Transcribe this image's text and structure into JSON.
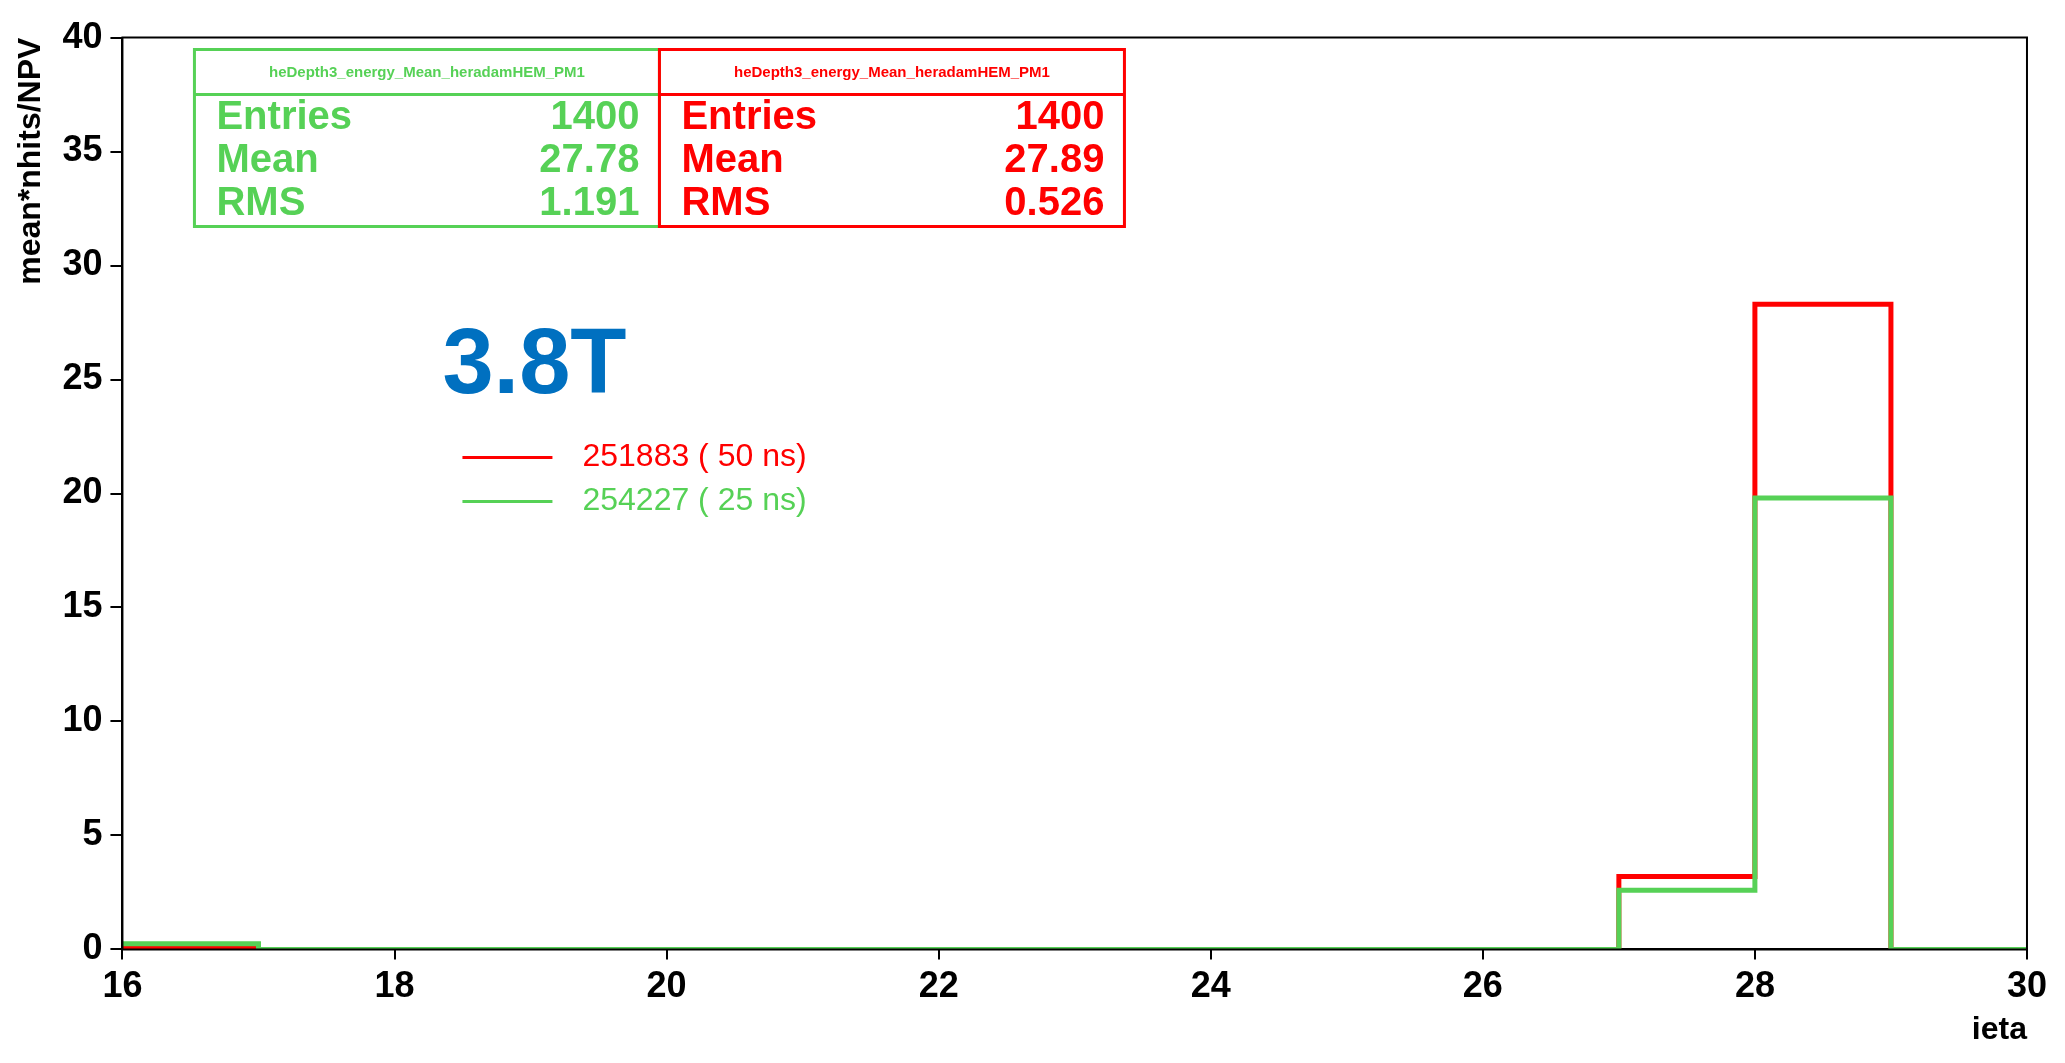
{
  "chart_data": {
    "type": "histogram",
    "xlabel": "ieta",
    "ylabel": "mean*nhits/NPV",
    "bins": [
      16,
      17,
      18,
      19,
      20,
      21,
      22,
      23,
      24,
      25,
      26,
      27,
      28,
      29,
      30
    ],
    "series": [
      {
        "name": "251883 ( 50 ns)",
        "color": "#ff0000",
        "values": [
          0.05,
          0,
          0,
          0,
          0,
          0,
          0,
          0,
          0,
          0,
          0,
          3.2,
          28.3,
          0
        ]
      },
      {
        "name": "254227 ( 25 ns)",
        "color": "#56d156",
        "values": [
          0.25,
          0,
          0,
          0,
          0,
          0,
          0,
          0,
          0,
          0,
          0,
          2.6,
          19.8,
          0
        ]
      }
    ],
    "xlim": [
      16,
      30
    ],
    "xticks": [
      16,
      18,
      20,
      22,
      24,
      26,
      28,
      30
    ],
    "ylim": [
      0,
      40
    ],
    "yticks": [
      0,
      5,
      10,
      15,
      20,
      25,
      30,
      35,
      40
    ],
    "grid": false,
    "legend": "top left",
    "annotations": [
      "3.8T",
      "heDepth3_energy_Mean_heradamHEM_PM1",
      "Entries 1400",
      "Mean 27.78",
      "RMS 1.191",
      "heDepth3_energy_Mean_heradamHEM_PM1",
      "Entries 1400",
      "Mean 27.89",
      "RMS 0.526"
    ]
  }
}
